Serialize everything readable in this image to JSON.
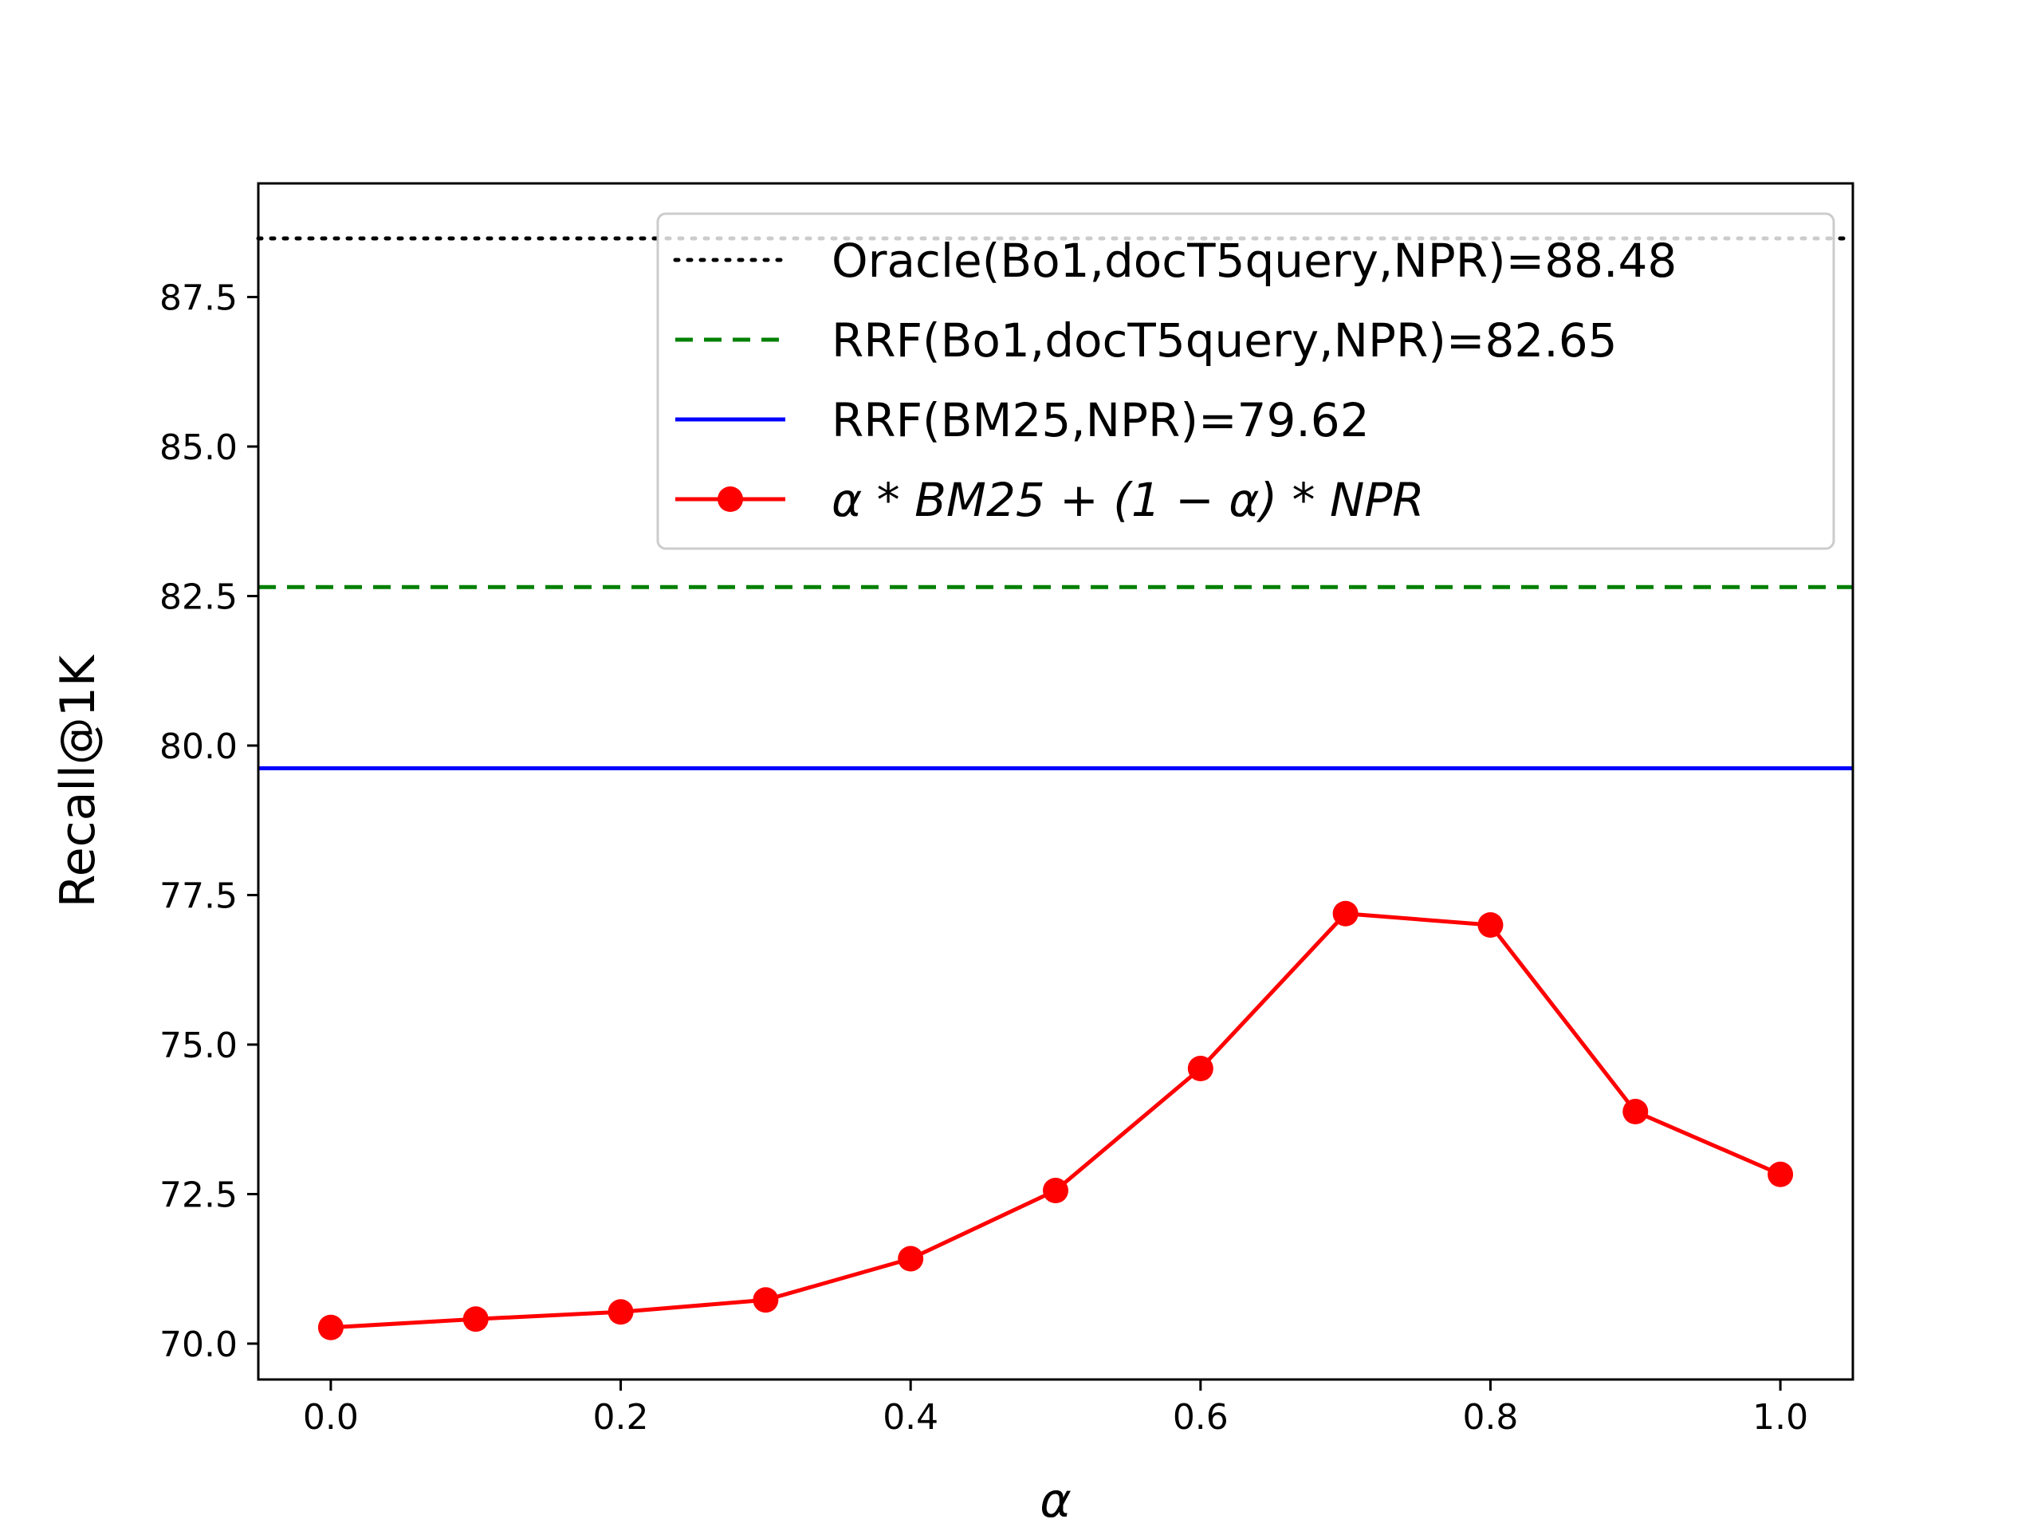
{
  "chart_data": {
    "type": "line",
    "title": "",
    "xlabel": "α",
    "ylabel": "Recall@1K",
    "xlim": [
      -0.05,
      1.05
    ],
    "ylim": [
      69.4,
      89.4
    ],
    "xticks": [
      0.0,
      0.2,
      0.4,
      0.6,
      0.8,
      1.0
    ],
    "xtick_labels": [
      "0.0",
      "0.2",
      "0.4",
      "0.6",
      "0.8",
      "1.0"
    ],
    "yticks": [
      70.0,
      72.5,
      75.0,
      77.5,
      80.0,
      82.5,
      85.0,
      87.5
    ],
    "ytick_labels": [
      "70.0",
      "72.5",
      "75.0",
      "77.5",
      "80.0",
      "82.5",
      "85.0",
      "87.5"
    ],
    "grid": false,
    "legend_position": "top-right",
    "reference_lines": [
      {
        "name": "Oracle(Bo1,docT5query,NPR)=88.48",
        "y": 88.48,
        "style": "dotted",
        "color": "#000000"
      },
      {
        "name": "RRF(Bo1,docT5query,NPR)=82.65",
        "y": 82.65,
        "style": "dashed",
        "color": "#008000"
      },
      {
        "name": "RRF(BM25,NPR)=79.62",
        "y": 79.62,
        "style": "solid",
        "color": "#0000ff"
      }
    ],
    "series": [
      {
        "name": "α * BM25 + (1 − α) * NPR",
        "color": "#ff0000",
        "marker": "circle",
        "x": [
          0.0,
          0.1,
          0.2,
          0.3,
          0.4,
          0.5,
          0.6,
          0.7,
          0.8,
          0.9,
          1.0
        ],
        "y": [
          70.27,
          70.41,
          70.53,
          70.73,
          71.42,
          72.56,
          74.6,
          77.19,
          77.0,
          73.88,
          72.83
        ]
      }
    ]
  }
}
